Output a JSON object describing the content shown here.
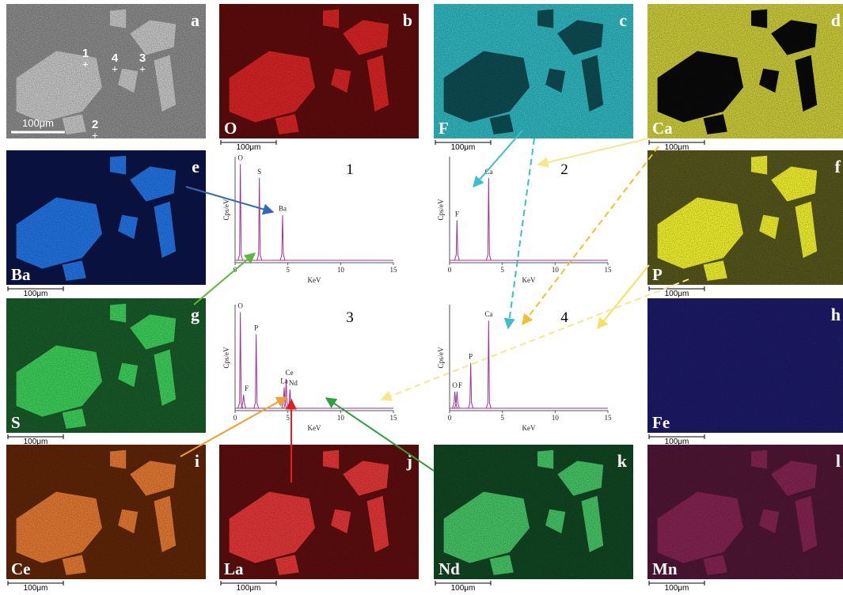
{
  "panels": [
    {
      "letter": "a",
      "scale_bar": "100μm",
      "points": [
        "1",
        "4",
        "3",
        "2"
      ]
    },
    {
      "letter": "b",
      "element": "O",
      "scale_bar": "100μm"
    },
    {
      "letter": "c",
      "element": "F",
      "scale_bar": "100μm"
    },
    {
      "letter": "d",
      "element": "Ca",
      "scale_bar": "100μm"
    },
    {
      "letter": "e",
      "element": "Ba",
      "scale_bar": "100μm"
    },
    {
      "letter": "f",
      "element": "P",
      "scale_bar": "100μm"
    },
    {
      "letter": "g",
      "element": "S",
      "scale_bar": "100μm"
    },
    {
      "letter": "h",
      "element": "Fe",
      "scale_bar": "100μm"
    },
    {
      "letter": "i",
      "element": "Ce",
      "scale_bar": "100μm"
    },
    {
      "letter": "j",
      "element": "La",
      "scale_bar": "100μm"
    },
    {
      "letter": "k",
      "element": "Nd",
      "scale_bar": "100μm"
    },
    {
      "letter": "l",
      "element": "Mn",
      "scale_bar": "100μm"
    }
  ],
  "spectra": [
    {
      "number": "1",
      "ylabel": "Cps/eV",
      "xlabel": "KeV",
      "xlim": [
        0,
        15
      ],
      "xticks": [
        0,
        5,
        10,
        15
      ],
      "peaks": [
        {
          "label": "O",
          "energy": 0.5,
          "height": 0.93
        },
        {
          "label": "S",
          "energy": 2.3,
          "height": 0.8
        },
        {
          "label": "Ba",
          "energy": 4.5,
          "height": 0.45
        }
      ]
    },
    {
      "number": "2",
      "ylabel": "Cps/eV",
      "xlabel": "KeV",
      "xlim": [
        0,
        15
      ],
      "xticks": [
        0,
        5,
        10,
        15
      ],
      "peaks": [
        {
          "label": "F",
          "energy": 0.7,
          "height": 0.4
        },
        {
          "label": "Ca",
          "energy": 3.7,
          "height": 0.8
        }
      ]
    },
    {
      "number": "3",
      "ylabel": "Cps/eV",
      "xlabel": "KeV",
      "xlim": [
        0,
        15
      ],
      "xticks": [
        0,
        5,
        10,
        15
      ],
      "peaks": [
        {
          "label": "O",
          "energy": 0.5,
          "height": 0.93
        },
        {
          "label": "F",
          "energy": 0.8,
          "height": 0.15
        },
        {
          "label": "P",
          "energy": 2.0,
          "height": 0.72
        },
        {
          "label": "La",
          "energy": 4.65,
          "height": 0.22
        },
        {
          "label": "Ce",
          "energy": 4.84,
          "height": 0.3
        },
        {
          "label": "Nd",
          "energy": 5.2,
          "height": 0.2
        }
      ]
    },
    {
      "number": "4",
      "ylabel": "Cps/eV",
      "xlabel": "KeV",
      "xlim": [
        0,
        15
      ],
      "xticks": [
        0,
        5,
        10,
        15
      ],
      "peaks": [
        {
          "label": "O",
          "energy": 0.5,
          "height": 0.18
        },
        {
          "label": "F",
          "energy": 0.7,
          "height": 0.18
        },
        {
          "label": "P",
          "energy": 2.0,
          "height": 0.45
        },
        {
          "label": "Ca",
          "energy": 3.7,
          "height": 0.85
        }
      ]
    }
  ]
}
